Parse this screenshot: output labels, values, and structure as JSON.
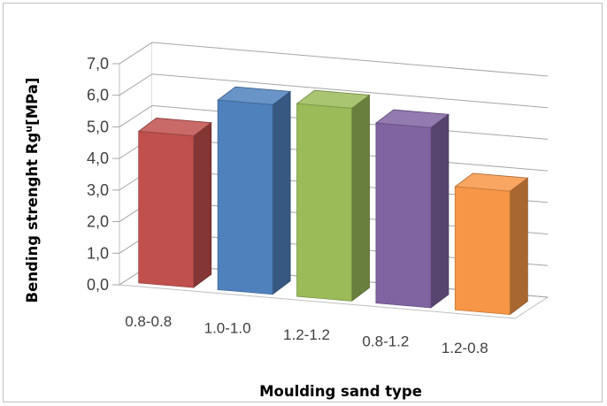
{
  "chart_data": {
    "type": "bar",
    "style": "3d-column",
    "categories": [
      "0.8-0.8",
      "1.0-1.0",
      "1.2-1.2",
      "0.8-1.2",
      "1.2-0.8"
    ],
    "values": [
      4.8,
      6.0,
      6.1,
      5.7,
      3.9
    ],
    "colors": [
      "#c0504d",
      "#4f81bd",
      "#9bbb59",
      "#8064a2",
      "#f79646"
    ],
    "xlabel": "Moulding sand type",
    "ylabel": "Bending strenght Rg",
    "ylabel_sup": "u",
    "ylabel_unit": "[MPa]",
    "ylim": [
      0,
      7
    ],
    "yticks": [
      "0,0",
      "1,0",
      "2,0",
      "3,0",
      "4,0",
      "5,0",
      "6,0",
      "7,0"
    ],
    "grid": true,
    "legend": "none"
  }
}
